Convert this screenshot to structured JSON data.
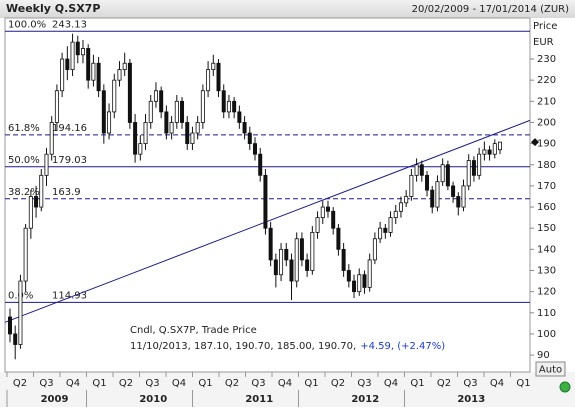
{
  "chart_data": {
    "type": "candlestick",
    "title": "Weekly Q.SX7P",
    "date_range": "20/02/2009 - 17/01/2014 (ZUR)",
    "y_axis_label": "Price",
    "y_axis_unit": "EUR",
    "ylim": [
      82,
      249.4
    ],
    "yticks": [
      90,
      100,
      110,
      120,
      130,
      140,
      150,
      160,
      170,
      180,
      190,
      200,
      210,
      220,
      230
    ],
    "x_quarters": [
      "Q2",
      "Q3",
      "Q4",
      "Q1",
      "Q2",
      "Q3",
      "Q4",
      "Q1",
      "Q2",
      "Q3",
      "Q4",
      "Q1",
      "Q2",
      "Q3",
      "Q4",
      "Q1",
      "Q2",
      "Q3",
      "Q4",
      "Q1"
    ],
    "x_years": [
      "2009",
      "2010",
      "2011",
      "2012",
      "2013"
    ],
    "candles": [
      [
        108,
        112,
        96,
        100
      ],
      [
        100,
        104,
        88,
        95
      ],
      [
        95,
        128,
        93,
        125
      ],
      [
        125,
        152,
        120,
        150
      ],
      [
        150,
        168,
        145,
        165
      ],
      [
        165,
        170,
        155,
        160
      ],
      [
        160,
        178,
        158,
        175
      ],
      [
        175,
        188,
        170,
        185
      ],
      [
        185,
        203,
        182,
        200
      ],
      [
        200,
        218,
        196,
        215
      ],
      [
        215,
        233,
        212,
        230
      ],
      [
        230,
        236,
        220,
        225
      ],
      [
        225,
        242,
        222,
        238
      ],
      [
        238,
        241,
        228,
        232
      ],
      [
        232,
        239,
        228,
        235
      ],
      [
        235,
        237,
        216,
        220
      ],
      [
        220,
        232,
        217,
        228
      ],
      [
        228,
        231,
        212,
        215
      ],
      [
        215,
        218,
        190,
        195
      ],
      [
        195,
        209,
        192,
        205
      ],
      [
        205,
        223,
        202,
        220
      ],
      [
        220,
        229,
        217,
        225
      ],
      [
        225,
        233,
        222,
        228
      ],
      [
        228,
        230,
        197,
        200
      ],
      [
        200,
        204,
        181,
        185
      ],
      [
        185,
        194,
        182,
        190
      ],
      [
        190,
        204,
        187,
        200
      ],
      [
        200,
        213,
        197,
        210
      ],
      [
        210,
        219,
        207,
        215
      ],
      [
        215,
        217,
        202,
        205
      ],
      [
        205,
        208,
        192,
        195
      ],
      [
        195,
        203,
        192,
        200
      ],
      [
        200,
        213,
        197,
        210
      ],
      [
        210,
        212,
        197,
        200
      ],
      [
        200,
        203,
        187,
        190
      ],
      [
        190,
        198,
        187,
        195
      ],
      [
        195,
        203,
        192,
        200
      ],
      [
        200,
        218,
        197,
        215
      ],
      [
        215,
        229,
        212,
        225
      ],
      [
        225,
        232,
        222,
        228
      ],
      [
        228,
        230,
        212,
        215
      ],
      [
        215,
        218,
        202,
        205
      ],
      [
        205,
        213,
        202,
        210
      ],
      [
        210,
        212,
        202,
        205
      ],
      [
        205,
        208,
        197,
        200
      ],
      [
        200,
        203,
        192,
        195
      ],
      [
        195,
        198,
        187,
        190
      ],
      [
        190,
        193,
        182,
        185
      ],
      [
        185,
        188,
        172,
        175
      ],
      [
        175,
        178,
        147,
        150
      ],
      [
        150,
        153,
        132,
        135
      ],
      [
        135,
        138,
        122,
        128
      ],
      [
        128,
        143,
        125,
        140
      ],
      [
        140,
        143,
        132,
        135
      ],
      [
        135,
        138,
        116,
        125
      ],
      [
        125,
        148,
        122,
        145
      ],
      [
        145,
        148,
        132,
        135
      ],
      [
        135,
        138,
        127,
        130
      ],
      [
        130,
        151,
        128,
        148
      ],
      [
        148,
        158,
        145,
        155
      ],
      [
        155,
        163,
        152,
        160
      ],
      [
        160,
        163,
        155,
        158
      ],
      [
        158,
        160,
        147,
        150
      ],
      [
        150,
        152,
        137,
        140
      ],
      [
        140,
        143,
        127,
        130
      ],
      [
        130,
        133,
        122,
        125
      ],
      [
        125,
        128,
        117,
        120
      ],
      [
        120,
        131,
        118,
        128
      ],
      [
        128,
        130,
        119,
        122
      ],
      [
        122,
        138,
        120,
        135
      ],
      [
        135,
        148,
        133,
        145
      ],
      [
        145,
        153,
        143,
        150
      ],
      [
        150,
        152,
        145,
        148
      ],
      [
        148,
        158,
        146,
        155
      ],
      [
        155,
        161,
        152,
        158
      ],
      [
        158,
        165,
        155,
        162
      ],
      [
        162,
        168,
        160,
        165
      ],
      [
        165,
        178,
        163,
        175
      ],
      [
        175,
        183,
        172,
        180
      ],
      [
        180,
        182,
        172,
        175
      ],
      [
        175,
        177,
        165,
        168
      ],
      [
        168,
        170,
        157,
        160
      ],
      [
        160,
        175,
        158,
        172
      ],
      [
        172,
        183,
        170,
        180
      ],
      [
        180,
        182,
        168,
        170
      ],
      [
        170,
        172,
        162,
        165
      ],
      [
        165,
        167,
        156,
        160
      ],
      [
        160,
        173,
        158,
        170
      ],
      [
        170,
        185,
        168,
        182
      ],
      [
        182,
        184,
        172,
        175
      ],
      [
        175,
        188,
        173,
        185
      ],
      [
        185,
        191,
        182,
        187
      ],
      [
        187,
        189,
        182,
        185
      ],
      [
        185,
        192,
        183,
        190
      ],
      [
        187.1,
        190.7,
        185,
        190.7
      ]
    ],
    "fib_levels": [
      {
        "label": "100.0%",
        "value": 243.13,
        "style": "solid"
      },
      {
        "label": "61.8%",
        "value": 194.16,
        "style": "dashed"
      },
      {
        "label": "50.0%",
        "value": 179.03,
        "style": "solid"
      },
      {
        "label": "38.2%",
        "value": 163.9,
        "style": "dashed"
      },
      {
        "label": "0.0%",
        "value": 114.93,
        "style": "solid"
      }
    ],
    "trendline": [
      105.5,
      201
    ],
    "line_color": "#1a1a8c",
    "annotation": {
      "line1": "Cndl, Q.SX7P, Trade Price",
      "line2": "11/10/2013, 187.10, 190.70, 185.00, 190.70,",
      "change": "+4.59, (+2.47%)"
    },
    "button": "Auto"
  }
}
